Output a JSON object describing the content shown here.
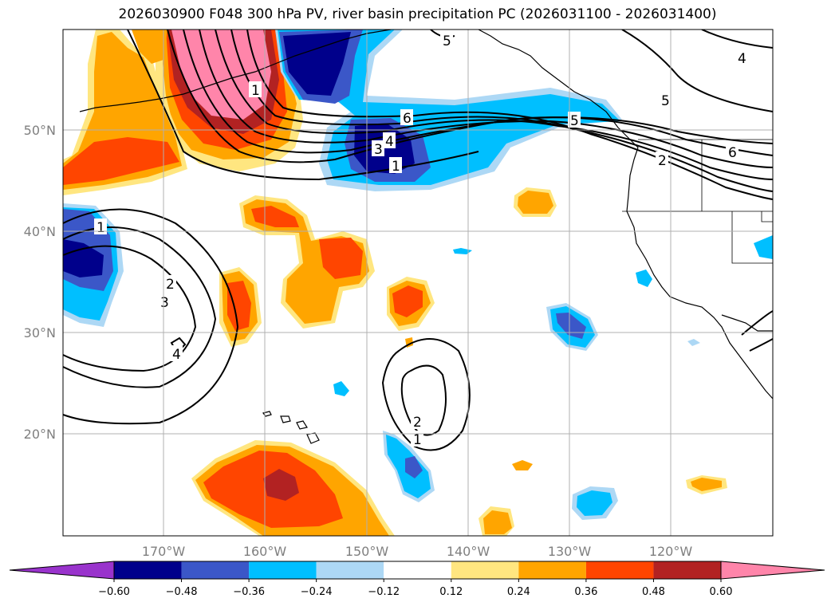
{
  "title": "2026030900 F048 300 hPa PV, river basin precipitation PC (2026031100 - 2026031400)",
  "map": {
    "region": "North Pacific",
    "lat_labels": [
      "50°N",
      "40°N",
      "30°N",
      "20°N"
    ],
    "lon_labels": [
      "170°W",
      "160°W",
      "150°W",
      "140°W",
      "130°W",
      "120°W"
    ]
  },
  "colorbar": {
    "levels": [
      "-0.60",
      "-0.48",
      "-0.36",
      "-0.24",
      "-0.12",
      "0.12",
      "0.24",
      "0.36",
      "0.48",
      "0.60"
    ],
    "colors": [
      "#9933cc",
      "#00008b",
      "#3b57c8",
      "#00bfff",
      "#add8f5",
      "#ffffff",
      "#ffe680",
      "#ffa500",
      "#ff4500",
      "#b22222",
      "#ff85aa"
    ]
  },
  "pv_contour_labels": [
    "1",
    "2",
    "3",
    "4",
    "5",
    "6"
  ]
}
